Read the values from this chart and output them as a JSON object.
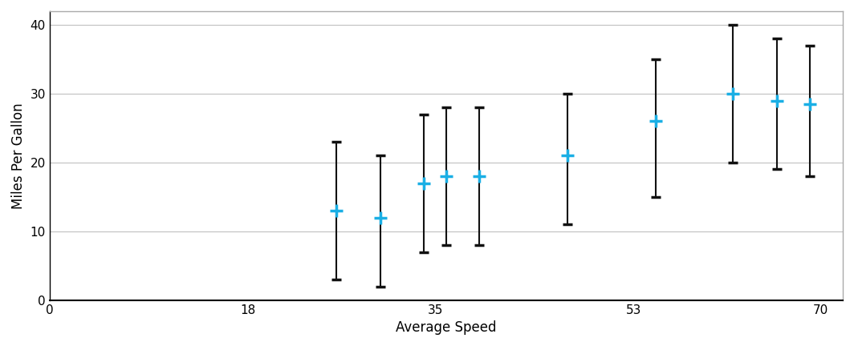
{
  "x": [
    26,
    30,
    34,
    36,
    39,
    47,
    55,
    62,
    66,
    69
  ],
  "y": [
    13,
    12,
    17,
    18,
    18,
    21,
    26,
    30,
    29,
    28.5
  ],
  "y_upper": [
    23,
    21,
    27,
    28,
    28,
    30,
    35,
    40,
    38,
    37
  ],
  "y_lower": [
    3,
    2,
    7,
    8,
    8,
    11,
    15,
    20,
    19,
    18
  ],
  "marker_color": "#1aafe5",
  "error_color": "#111111",
  "xlabel": "Average Speed",
  "ylabel": "Miles Per Gallon",
  "xlim": [
    0,
    72
  ],
  "ylim": [
    0,
    42
  ],
  "xticks": [
    0,
    18,
    35,
    53,
    70
  ],
  "yticks": [
    0,
    10,
    20,
    30,
    40
  ],
  "background_color": "#ffffff",
  "grid_color": "#c0c0c0",
  "border_color": "#aaaaaa"
}
